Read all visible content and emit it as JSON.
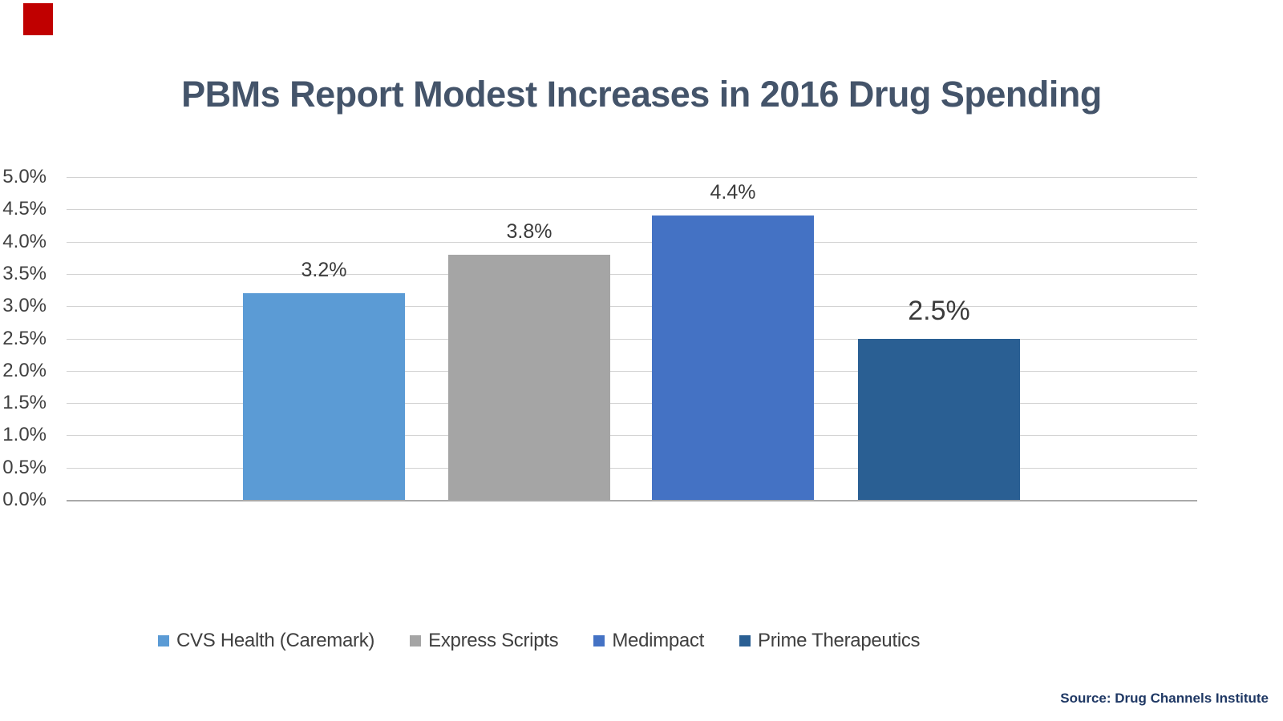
{
  "page": {
    "background": "#FFFFFF",
    "corner_mark_color": "#C00000",
    "source_note": "Source: Drug Channels Institute"
  },
  "chart_data": {
    "type": "bar",
    "title": "PBMs Report Modest Increases in 2016 Drug Spending",
    "title_color": "#44546A",
    "categories": [
      "CVS Health (Caremark)",
      "Express Scripts",
      "Medimpact",
      "Prime Therapeutics"
    ],
    "values": [
      3.2,
      3.8,
      4.4,
      2.5
    ],
    "value_labels": [
      "3.2%",
      "3.8%",
      "4.4%",
      "2.5%"
    ],
    "series_colors": [
      "#5B9BD5",
      "#A5A5A5",
      "#4472C4",
      "#2A5F93"
    ],
    "emphasized_label_index": 3,
    "xlabel": "",
    "ylabel": "",
    "ylim": [
      0,
      5
    ],
    "yticks": [
      0,
      0.5,
      1,
      1.5,
      2,
      2.5,
      3,
      3.5,
      4,
      4.5,
      5
    ],
    "ytick_labels": [
      "0.0%",
      "0.5%",
      "1.0%",
      "1.5%",
      "2.0%",
      "2.5%",
      "3.0%",
      "3.5%",
      "4.0%",
      "4.5%",
      "5.0%"
    ],
    "grid": true,
    "gridline_color": "#D2D2D2",
    "axis_line_color": "#A9A9A9",
    "tick_label_color": "#404040",
    "data_label_color": "#3B3B3B",
    "legend_position": "bottom"
  }
}
